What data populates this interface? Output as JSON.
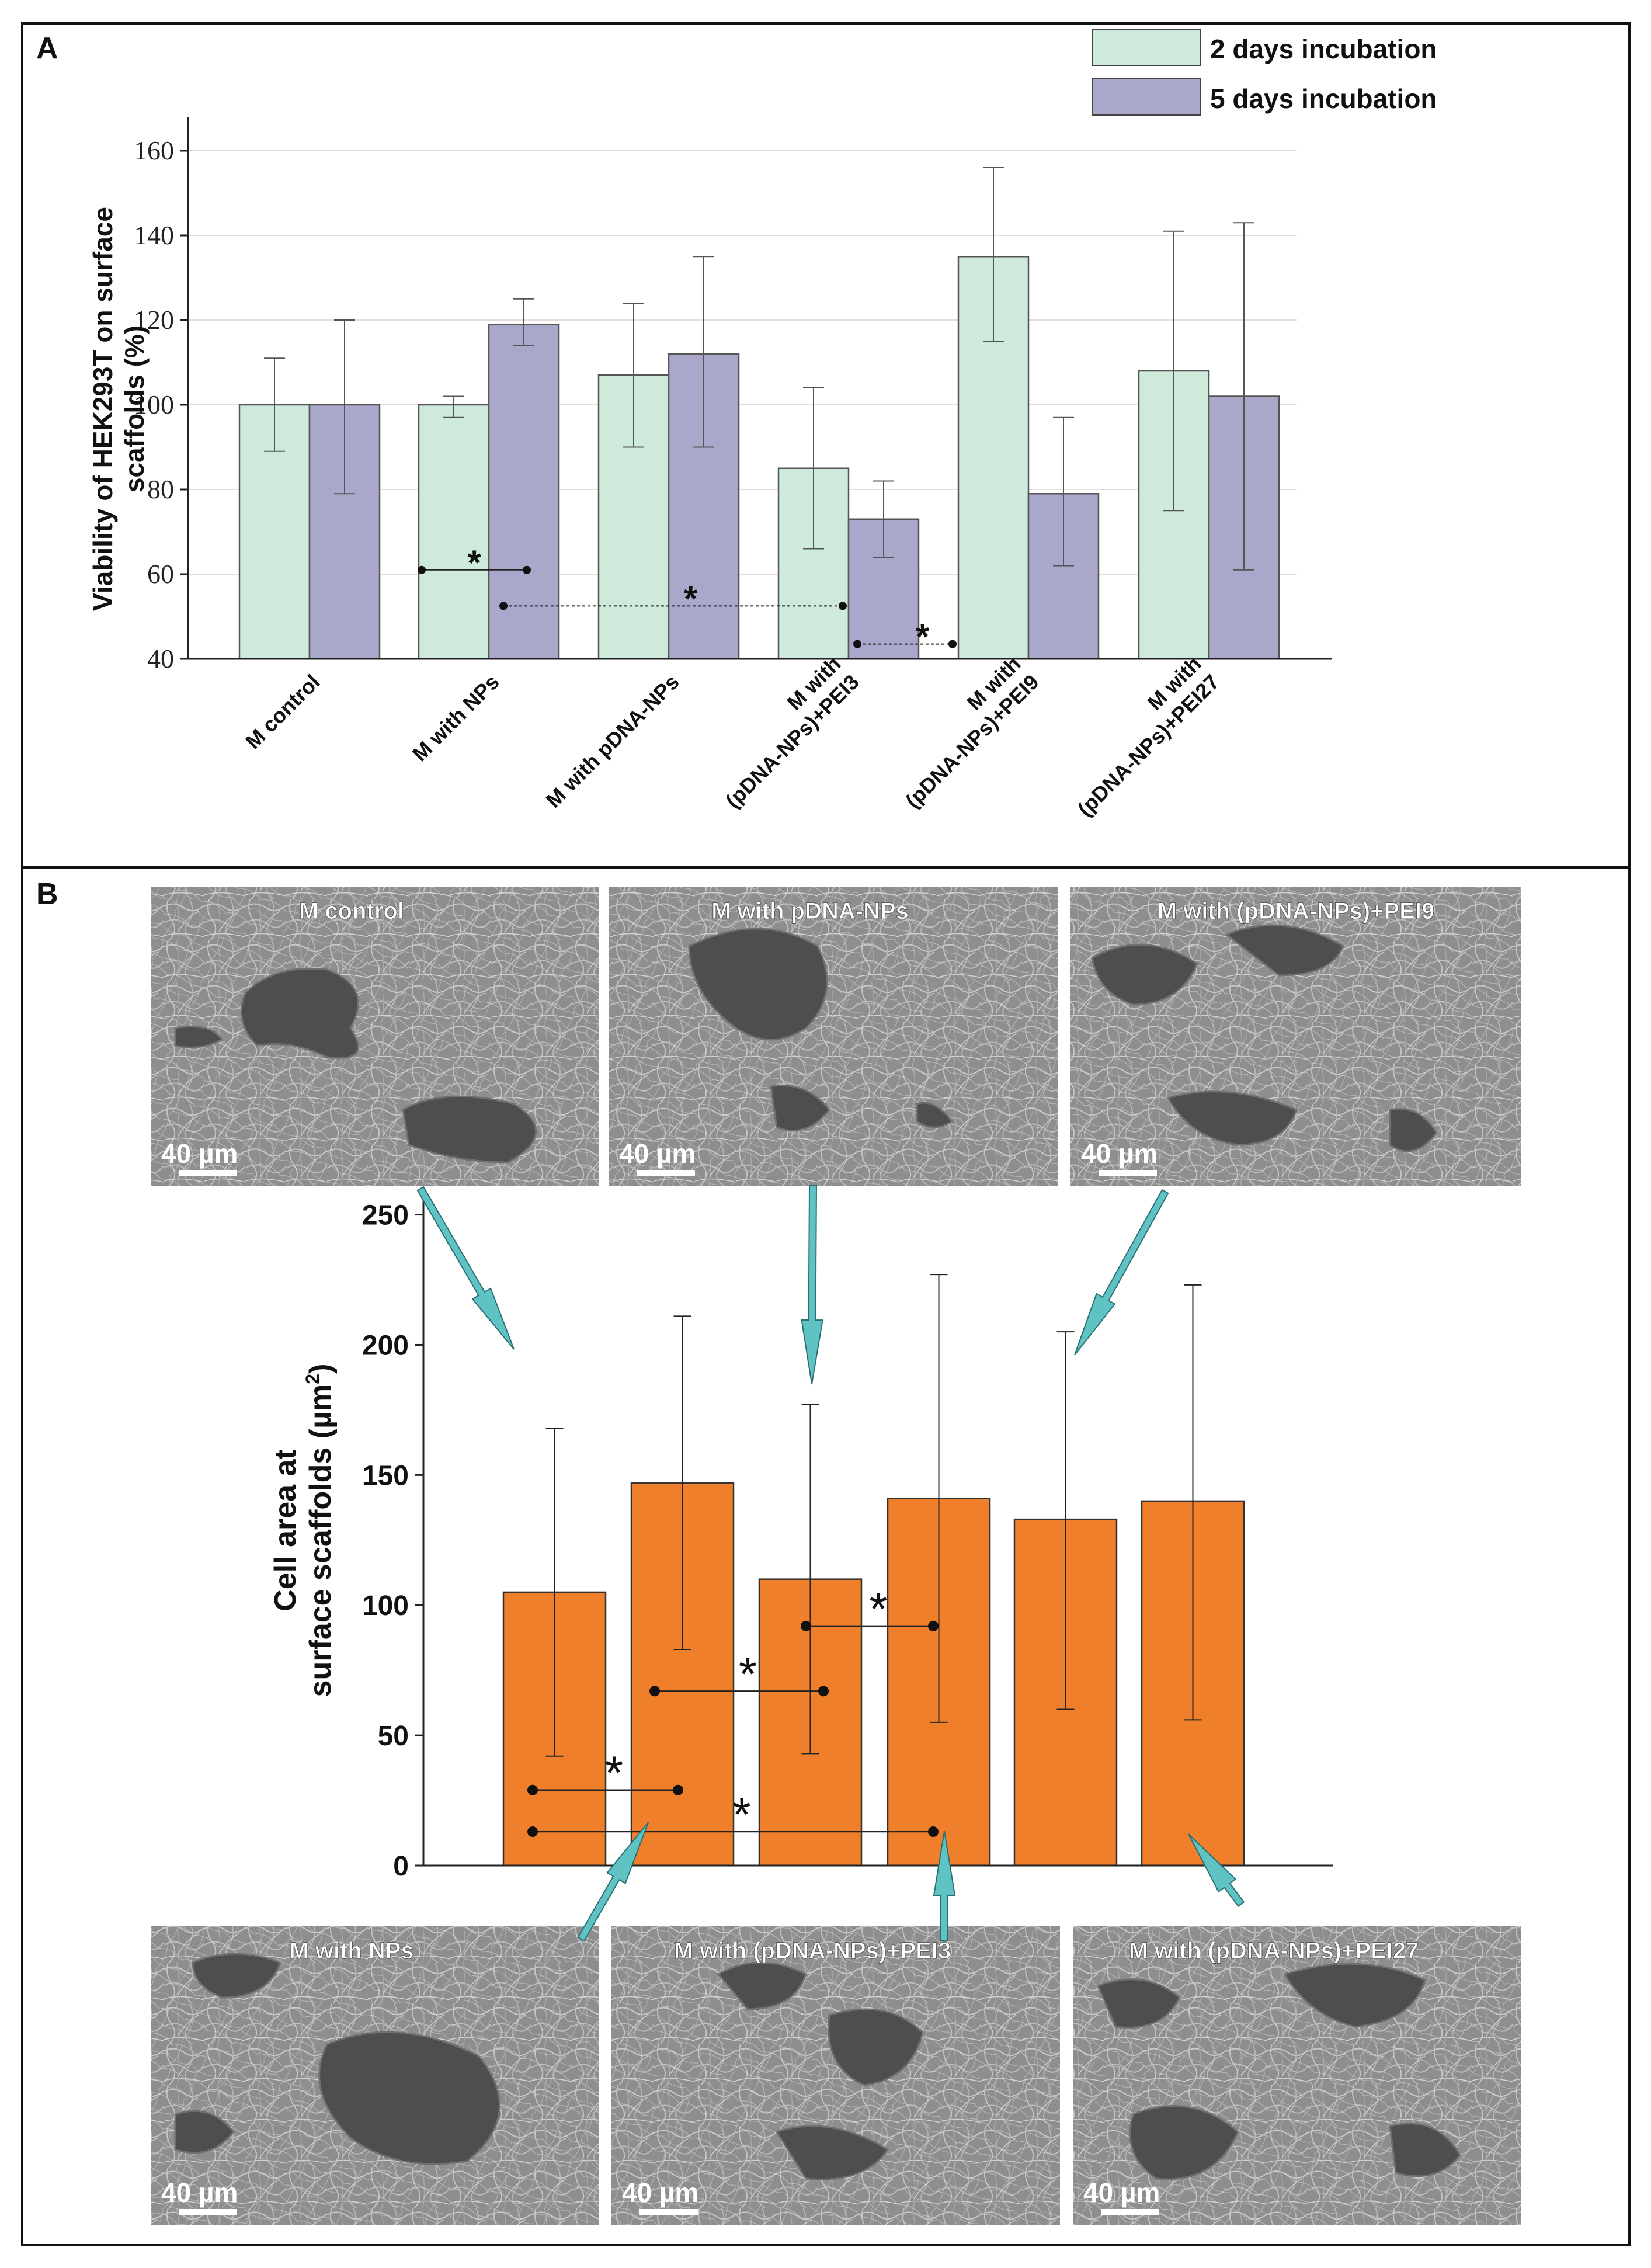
{
  "panel_a": {
    "label": "A",
    "chart_data": {
      "type": "bar",
      "ylabel_line1": "Viability of HEK293T on surface",
      "ylabel_line2": "scaffolds (%)",
      "ylim": [
        40,
        168
      ],
      "yticks": [
        40,
        60,
        80,
        100,
        120,
        140,
        160
      ],
      "grid": true,
      "legend_placement": "top-right",
      "categories": [
        "M control",
        "M with NPs",
        "M with pDNA-NPs",
        "M with (pDNA-NPs)+PEI3",
        "M with (pDNA-NPs)+PEI9",
        "M with (pDNA-NPs)+PEI27"
      ],
      "category_lines": [
        [
          "M control"
        ],
        [
          "M with NPs"
        ],
        [
          "M with pDNA-NPs"
        ],
        [
          "M with",
          "(pDNA-NPs)+PEI3"
        ],
        [
          "M with",
          "(pDNA-NPs)+PEI9"
        ],
        [
          "M with",
          "(pDNA-NPs)+PEI27"
        ]
      ],
      "series": [
        {
          "name": "2 days incubation",
          "color": "#cdeadb",
          "values": [
            100,
            100,
            107,
            85,
            135,
            108
          ],
          "err_low": [
            89,
            97,
            90,
            66,
            115,
            75
          ],
          "err_high": [
            111,
            102,
            124,
            104,
            156,
            141
          ]
        },
        {
          "name": "5 days incubation",
          "color": "#a9a7ca",
          "values": [
            100,
            119,
            112,
            73,
            79,
            102
          ],
          "err_low": [
            79,
            114,
            90,
            64,
            62,
            61
          ],
          "err_high": [
            120,
            125,
            135,
            82,
            97,
            143
          ]
        }
      ],
      "significance": [
        {
          "from": [
            1,
            0
          ],
          "to": [
            1,
            1
          ],
          "y": 61,
          "mark": "*",
          "style": "solid"
        },
        {
          "from": [
            1,
            1
          ],
          "to": [
            3,
            1
          ],
          "y": 52.5,
          "mark": "*",
          "style": "dashed"
        },
        {
          "from": [
            3,
            1
          ],
          "to": [
            4,
            0
          ],
          "y": 43.5,
          "mark": "*",
          "style": "dashed"
        }
      ]
    }
  },
  "panel_b": {
    "label": "B",
    "chart_data": {
      "type": "bar",
      "ylabel_line1": "Cell area at",
      "ylabel_line2": "surface scaffolds (µm",
      "ylabel_sup": "2",
      "ylabel_close": ")",
      "ylim": [
        0,
        260
      ],
      "yticks": [
        0,
        50,
        100,
        150,
        200,
        250
      ],
      "grid": false,
      "categories": [
        "M control",
        "M with NPs",
        "M with pDNA-NPs",
        "M with (pDNA-NPs)+PEI3",
        "M with (pDNA-NPs)+PEI9",
        "M with (pDNA-NPs)+PEI27"
      ],
      "series": [
        {
          "color": "#ef7f2a",
          "values": [
            105,
            147,
            110,
            141,
            133,
            140
          ],
          "err_low": [
            42,
            83,
            43,
            55,
            60,
            56
          ],
          "err_high": [
            168,
            211,
            177,
            227,
            205,
            223
          ]
        }
      ],
      "significance": [
        {
          "from": 0,
          "to": 1,
          "y": 29,
          "mark": "*"
        },
        {
          "from": 0,
          "to": 3,
          "y": 13,
          "mark": "*"
        },
        {
          "from": 1,
          "to": 2,
          "y": 67,
          "mark": "*"
        },
        {
          "from": 2,
          "to": 3,
          "y": 92,
          "mark": "*"
        }
      ]
    },
    "images": [
      {
        "title": "M control",
        "scale": "40 µm"
      },
      {
        "title": "M with pDNA-NPs",
        "scale": "40 µm"
      },
      {
        "title": "M with (pDNA-NPs)+PEI9",
        "scale": "40 µm"
      },
      {
        "title": "M with NPs",
        "scale": "40 µm"
      },
      {
        "title": "M with (pDNA-NPs)+PEI3",
        "scale": "40 µm"
      },
      {
        "title": "M with (pDNA-NPs)+PEI27",
        "scale": "40 µm"
      }
    ],
    "arrow_color": "#5fc3c4"
  }
}
